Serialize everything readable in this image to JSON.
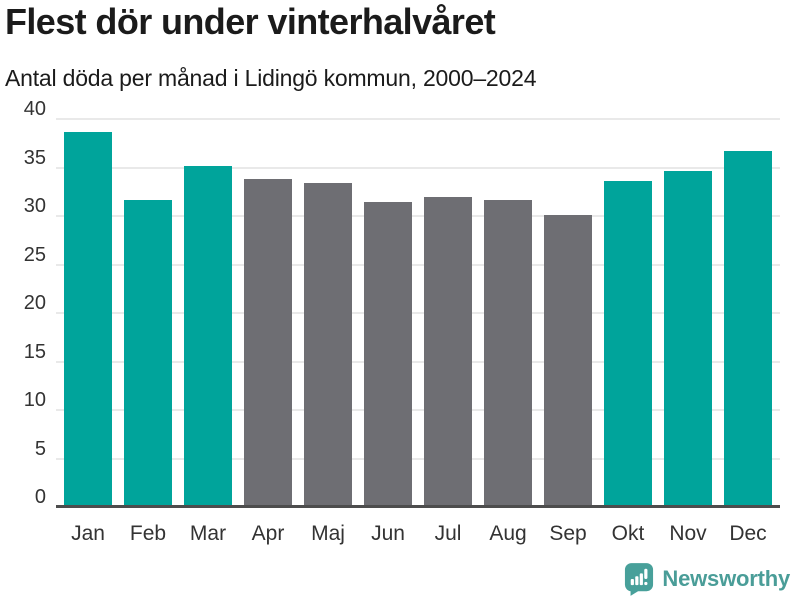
{
  "chart_data": {
    "type": "bar",
    "title": "Flest dör under vinterhalvåret",
    "subtitle": "Antal döda per månad i Lidingö kommun, 2000–2024",
    "categories": [
      "Jan",
      "Feb",
      "Mar",
      "Apr",
      "Maj",
      "Jun",
      "Jul",
      "Aug",
      "Sep",
      "Okt",
      "Nov",
      "Dec"
    ],
    "values": [
      38.7,
      31.7,
      35.2,
      33.8,
      33.4,
      31.4,
      32.0,
      31.6,
      30.1,
      33.6,
      34.6,
      36.7
    ],
    "bar_color_keys": [
      "winter",
      "winter",
      "winter",
      "summer",
      "summer",
      "summer",
      "summer",
      "summer",
      "summer",
      "winter",
      "winter",
      "winter"
    ],
    "bar_palette": {
      "winter": "#00a49b",
      "summer": "#6e6e73"
    },
    "xlabel": "",
    "ylabel": "",
    "ylim": [
      0,
      40
    ],
    "yticks": [
      0,
      5,
      10,
      15,
      20,
      25,
      30,
      35,
      40
    ],
    "grid": "horizontal",
    "legend_position": "none"
  },
  "footer": {
    "brand": "Newsworthy",
    "logo_icon": "speech-bubble-bar-chart-icon"
  },
  "colors": {
    "background": "#ffffff",
    "title_text": "#1b1b1b",
    "tick_text": "#333333",
    "gridline": "#e9e9e9",
    "axis_line": "#4d4d4d",
    "logo_background": "#48a09a",
    "logo_glyph": "#ffffff",
    "brand_text": "#4a9d98"
  }
}
